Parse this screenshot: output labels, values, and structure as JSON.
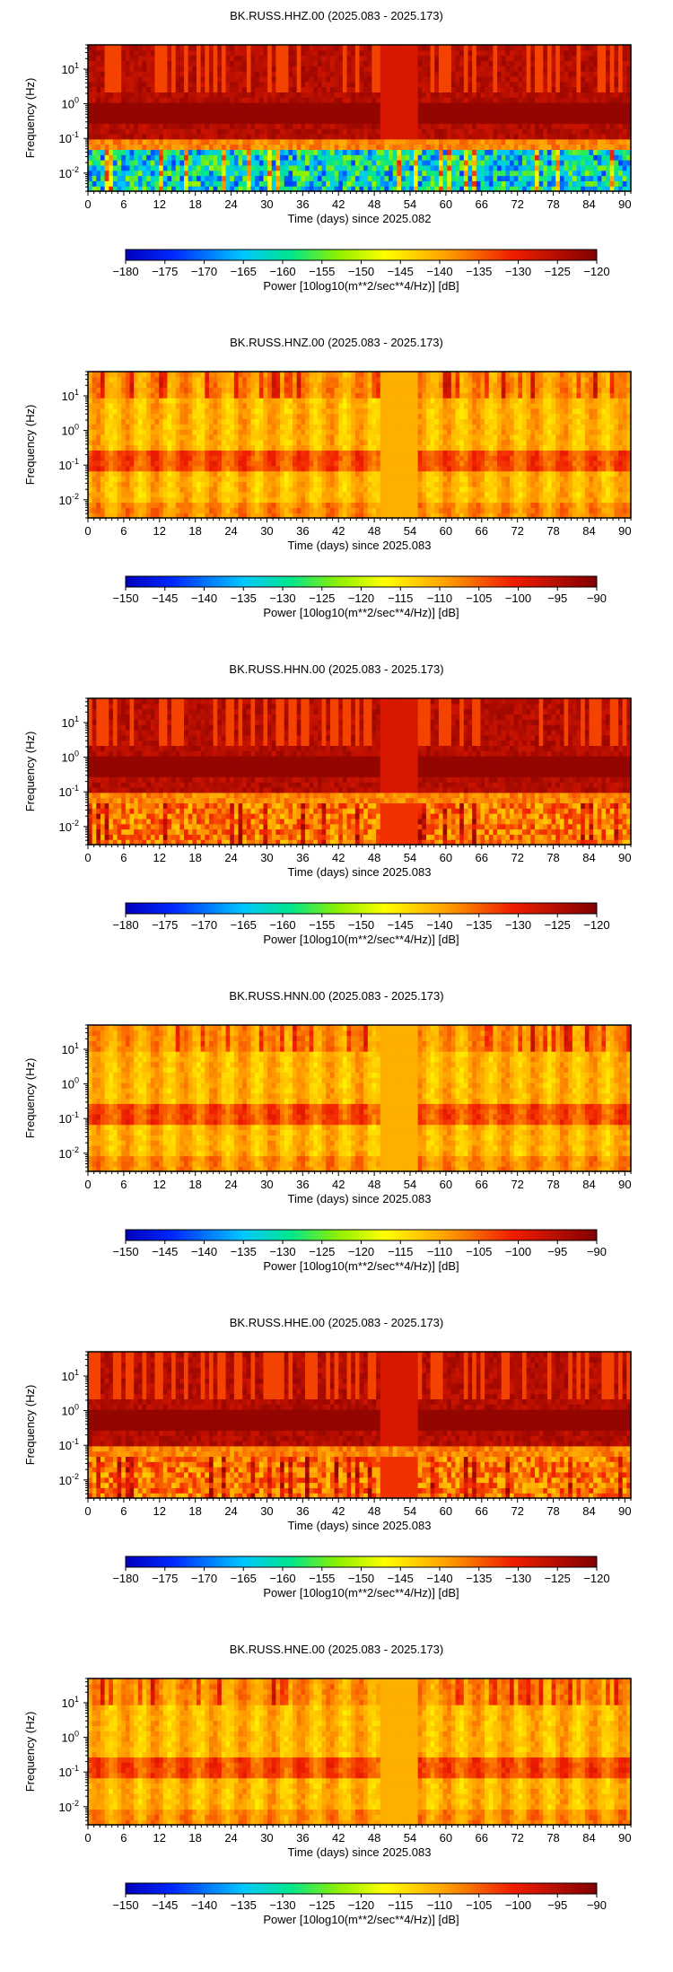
{
  "chart_data": [
    {
      "type": "heatmap",
      "title": "BK.RUSS.HHZ.00 (2025.083 - 2025.173)",
      "xlabel": "Time (days) since 2025.082",
      "ylabel": "Frequency (Hz)",
      "x_ticks": [
        "0",
        "6",
        "12",
        "18",
        "24",
        "30",
        "36",
        "42",
        "48",
        "54",
        "60",
        "66",
        "72",
        "78",
        "84",
        "90"
      ],
      "xlim": [
        0,
        91
      ],
      "y_scale": "log",
      "ylim": [
        0.003,
        50
      ],
      "y_ticks": [
        "10^-2",
        "10^-1",
        "10^0",
        "10^1"
      ],
      "colorbar_label": "Power [10log10(m**2/sec**4/Hz)] [dB]",
      "colorbar_range": [
        -180,
        -120
      ],
      "colorbar_ticks": [
        "-180",
        "-175",
        "-170",
        "-165",
        "-160",
        "-155",
        "-150",
        "-145",
        "-140",
        "-135",
        "-130",
        "-125",
        "-120"
      ],
      "colormap": "blue-cyan-green-yellow-orange-red-darkred"
    },
    {
      "type": "heatmap",
      "title": "BK.RUSS.HNZ.00 (2025.083 - 2025.173)",
      "xlabel": "Time (days) since 2025.083",
      "ylabel": "Frequency (Hz)",
      "x_ticks": [
        "0",
        "6",
        "12",
        "18",
        "24",
        "30",
        "36",
        "42",
        "48",
        "54",
        "60",
        "66",
        "72",
        "78",
        "84",
        "90"
      ],
      "xlim": [
        0,
        91
      ],
      "y_scale": "log",
      "ylim": [
        0.003,
        50
      ],
      "y_ticks": [
        "10^-2",
        "10^-1",
        "10^0",
        "10^1"
      ],
      "colorbar_label": "Power [10log10(m**2/sec**4/Hz)] [dB]",
      "colorbar_range": [
        -150,
        -90
      ],
      "colorbar_ticks": [
        "-150",
        "-145",
        "-140",
        "-135",
        "-130",
        "-125",
        "-120",
        "-115",
        "-110",
        "-105",
        "-100",
        "-95",
        "-90"
      ],
      "colormap": "blue-cyan-green-yellow-orange-red-darkred"
    },
    {
      "type": "heatmap",
      "title": "BK.RUSS.HHN.00 (2025.083 - 2025.173)",
      "xlabel": "Time (days) since 2025.083",
      "ylabel": "Frequency (Hz)",
      "x_ticks": [
        "0",
        "6",
        "12",
        "18",
        "24",
        "30",
        "36",
        "42",
        "48",
        "54",
        "60",
        "66",
        "72",
        "78",
        "84",
        "90"
      ],
      "xlim": [
        0,
        91
      ],
      "y_scale": "log",
      "ylim": [
        0.003,
        50
      ],
      "y_ticks": [
        "10^-2",
        "10^-1",
        "10^0",
        "10^1"
      ],
      "colorbar_label": "Power [10log10(m**2/sec**4/Hz)] [dB]",
      "colorbar_range": [
        -180,
        -120
      ],
      "colorbar_ticks": [
        "-180",
        "-175",
        "-170",
        "-165",
        "-160",
        "-155",
        "-150",
        "-145",
        "-140",
        "-135",
        "-130",
        "-125",
        "-120"
      ],
      "colormap": "blue-cyan-green-yellow-orange-red-darkred"
    },
    {
      "type": "heatmap",
      "title": "BK.RUSS.HNN.00 (2025.083 - 2025.173)",
      "xlabel": "Time (days) since 2025.083",
      "ylabel": "Frequency (Hz)",
      "x_ticks": [
        "0",
        "6",
        "12",
        "18",
        "24",
        "30",
        "36",
        "42",
        "48",
        "54",
        "60",
        "66",
        "72",
        "78",
        "84",
        "90"
      ],
      "xlim": [
        0,
        91
      ],
      "y_scale": "log",
      "ylim": [
        0.003,
        50
      ],
      "y_ticks": [
        "10^-2",
        "10^-1",
        "10^0",
        "10^1"
      ],
      "colorbar_label": "Power [10log10(m**2/sec**4/Hz)] [dB]",
      "colorbar_range": [
        -150,
        -90
      ],
      "colorbar_ticks": [
        "-150",
        "-145",
        "-140",
        "-135",
        "-130",
        "-125",
        "-120",
        "-115",
        "-110",
        "-105",
        "-100",
        "-95",
        "-90"
      ],
      "colormap": "blue-cyan-green-yellow-orange-red-darkred"
    },
    {
      "type": "heatmap",
      "title": "BK.RUSS.HHE.00 (2025.083 - 2025.173)",
      "xlabel": "Time (days) since 2025.083",
      "ylabel": "Frequency (Hz)",
      "x_ticks": [
        "0",
        "6",
        "12",
        "18",
        "24",
        "30",
        "36",
        "42",
        "48",
        "54",
        "60",
        "66",
        "72",
        "78",
        "84",
        "90"
      ],
      "xlim": [
        0,
        91
      ],
      "y_scale": "log",
      "ylim": [
        0.003,
        50
      ],
      "y_ticks": [
        "10^-2",
        "10^-1",
        "10^0",
        "10^1"
      ],
      "colorbar_label": "Power [10log10(m**2/sec**4/Hz)] [dB]",
      "colorbar_range": [
        -180,
        -120
      ],
      "colorbar_ticks": [
        "-180",
        "-175",
        "-170",
        "-165",
        "-160",
        "-155",
        "-150",
        "-145",
        "-140",
        "-135",
        "-130",
        "-125",
        "-120"
      ],
      "colormap": "blue-cyan-green-yellow-orange-red-darkred"
    },
    {
      "type": "heatmap",
      "title": "BK.RUSS.HNE.00 (2025.083 - 2025.173)",
      "xlabel": "Time (days) since 2025.083",
      "ylabel": "Frequency (Hz)",
      "x_ticks": [
        "0",
        "6",
        "12",
        "18",
        "24",
        "30",
        "36",
        "42",
        "48",
        "54",
        "60",
        "66",
        "72",
        "78",
        "84",
        "90"
      ],
      "xlim": [
        0,
        91
      ],
      "y_scale": "log",
      "ylim": [
        0.003,
        50
      ],
      "y_ticks": [
        "10^-2",
        "10^-1",
        "10^0",
        "10^1"
      ],
      "colorbar_label": "Power [10log10(m**2/sec**4/Hz)] [dB]",
      "colorbar_range": [
        -150,
        -90
      ],
      "colorbar_ticks": [
        "-150",
        "-145",
        "-140",
        "-135",
        "-130",
        "-125",
        "-120",
        "-115",
        "-110",
        "-105",
        "-100",
        "-95",
        "-90"
      ],
      "colormap": "blue-cyan-green-yellow-orange-red-darkred"
    }
  ]
}
